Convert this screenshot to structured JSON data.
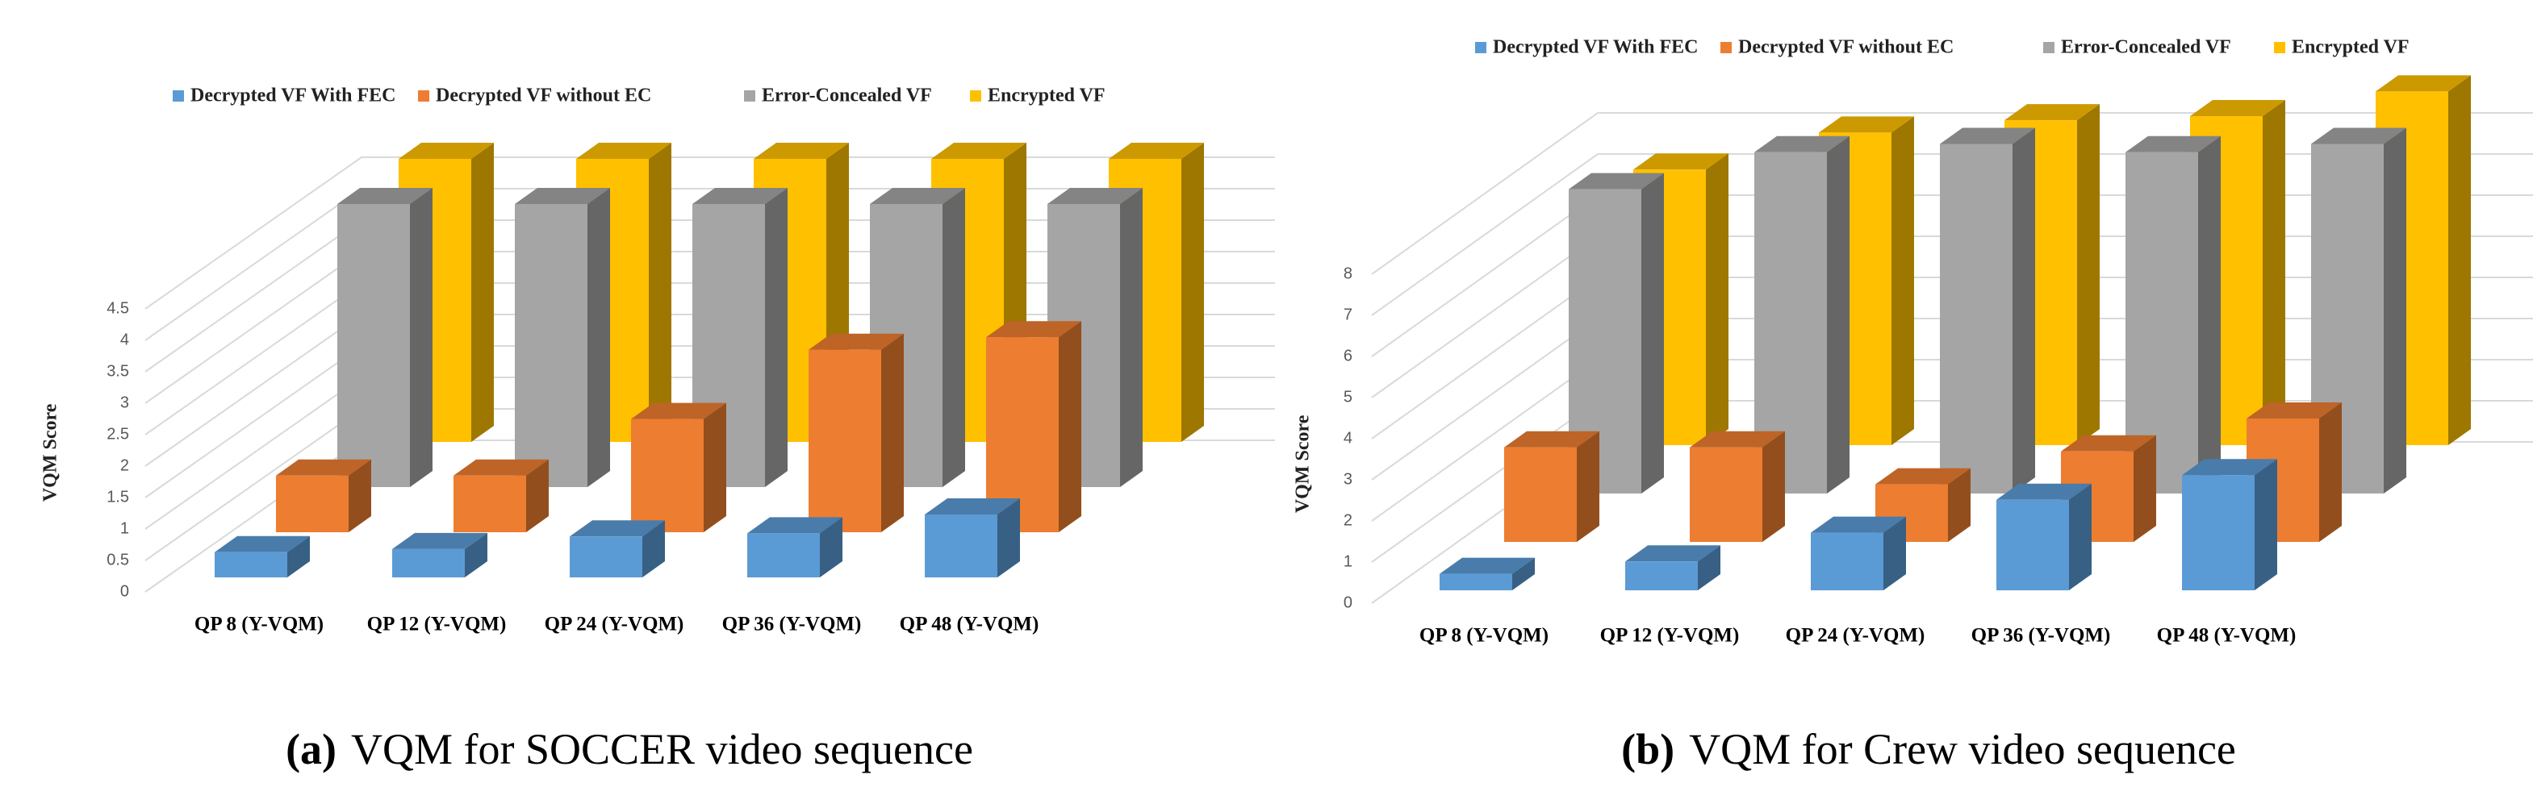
{
  "chart_data": [
    {
      "type": "bar3d",
      "caption_label": "(a)",
      "caption": "VQM for SOCCER video sequence",
      "ylabel": "VQM Score",
      "categories": [
        "QP 8 (Y-VQM)",
        "QP 12 (Y-VQM)",
        "QP 24 (Y-VQM)",
        "QP 36 (Y-VQM)",
        "QP 48 (Y-VQM)"
      ],
      "series": [
        {
          "name": "Decrypted VF With FEC",
          "color": "#5b9bd5",
          "values": [
            0.4,
            0.45,
            0.65,
            0.7,
            1.0
          ]
        },
        {
          "name": "Decrypted VF without EC",
          "color": "#ed7d31",
          "values": [
            0.9,
            0.9,
            1.8,
            2.9,
            3.1
          ]
        },
        {
          "name": "Error-Concealed VF",
          "color": "#a5a5a5",
          "values": [
            4.5,
            4.5,
            4.5,
            4.5,
            4.5
          ]
        },
        {
          "name": "Encrypted VF",
          "color": "#ffc000",
          "values": [
            4.5,
            4.5,
            4.5,
            4.5,
            4.5
          ]
        }
      ],
      "ylim": [
        0,
        4.5
      ],
      "yticks": [
        0,
        0.5,
        1,
        1.5,
        2,
        2.5,
        3,
        3.5,
        4,
        4.5
      ],
      "grid": true
    },
    {
      "type": "bar3d",
      "caption_label": "(b)",
      "caption": "VQM for Crew video sequence",
      "ylabel": "VQM Score",
      "categories": [
        "QP 8 (Y-VQM)",
        "QP 12 (Y-VQM)",
        "QP 24 (Y-VQM)",
        "QP 36 (Y-VQM)",
        "QP 48 (Y-VQM)"
      ],
      "series": [
        {
          "name": "Decrypted VF With FEC",
          "color": "#5b9bd5",
          "values": [
            0.4,
            0.7,
            1.4,
            2.2,
            2.8
          ]
        },
        {
          "name": "Decrypted VF without EC",
          "color": "#ed7d31",
          "values": [
            2.3,
            2.3,
            1.4,
            2.2,
            3.0
          ]
        },
        {
          "name": "Error-Concealed VF",
          "color": "#a5a5a5",
          "values": [
            7.4,
            8.3,
            8.5,
            8.3,
            8.5
          ]
        },
        {
          "name": "Encrypted VF",
          "color": "#ffc000",
          "values": [
            6.7,
            7.6,
            7.9,
            8.0,
            8.6
          ]
        }
      ],
      "ylim": [
        0,
        8
      ],
      "yticks": [
        0,
        1,
        2,
        3,
        4,
        5,
        6,
        7,
        8
      ],
      "grid": true
    }
  ]
}
